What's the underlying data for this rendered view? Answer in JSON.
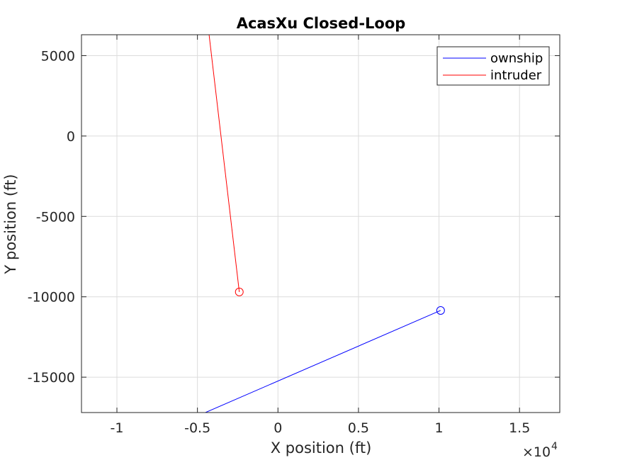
{
  "chart_data": {
    "type": "line",
    "title": "AcasXu Closed-Loop",
    "xlabel": "X position (ft)",
    "ylabel": "Y position (ft)",
    "x_exponent_label": "×10",
    "x_exponent_power": "4",
    "xlim": [
      -12200,
      17500
    ],
    "ylim": [
      -17200,
      6300
    ],
    "x_ticks": [
      -10000,
      -5000,
      0,
      5000,
      10000,
      15000
    ],
    "x_tick_labels": [
      "-1",
      "-0.5",
      "0",
      "0.5",
      "1",
      "1.5"
    ],
    "y_ticks": [
      5000,
      0,
      -5000,
      -10000,
      -15000
    ],
    "y_tick_labels": [
      "5000",
      "0",
      "-5000",
      "-10000",
      "-15000"
    ],
    "grid": true,
    "legend_position": "top-right",
    "series": [
      {
        "name": "ownship",
        "color": "#0000ff",
        "points": [
          [
            -5200,
            -17500
          ],
          [
            10100,
            -10850
          ]
        ],
        "end_marker": "circle"
      },
      {
        "name": "intruder",
        "color": "#ff0000",
        "points": [
          [
            -4300,
            6500
          ],
          [
            -2400,
            -9700
          ]
        ],
        "end_marker": "circle"
      }
    ]
  }
}
